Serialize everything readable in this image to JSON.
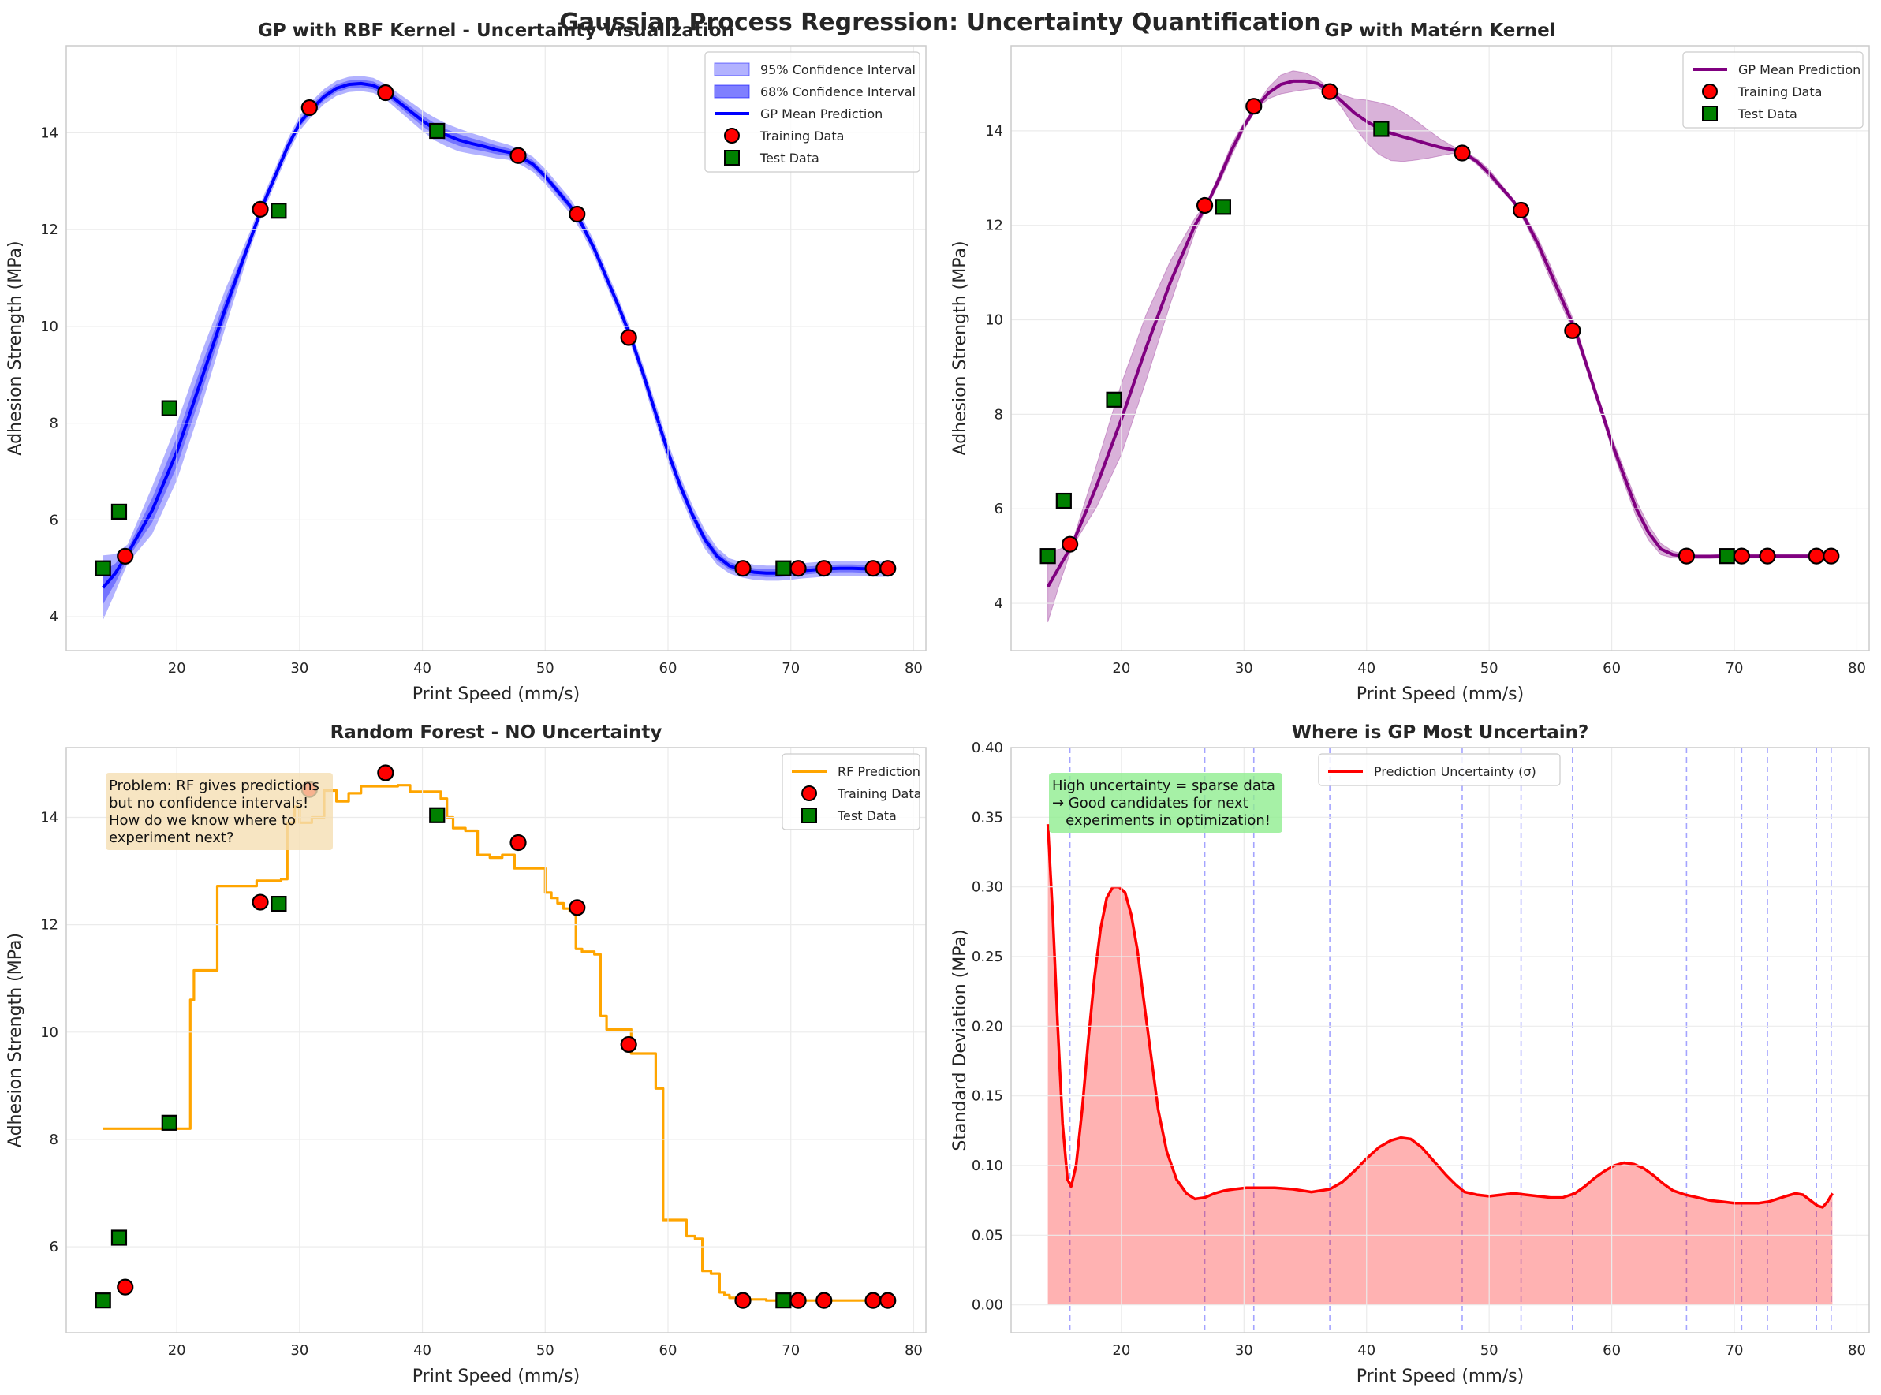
{
  "suptitle": "Gaussian Process Regression: Uncertainty Quantification",
  "colors": {
    "rbf": "#0000ff",
    "matern": "#800080",
    "rf": "#ffa500",
    "uncert": "#ff0000",
    "train_face": "#ff0000",
    "test_face": "#008000"
  },
  "chart_data": [
    {
      "type": "line",
      "title": "GP with RBF Kernel - Uncertainty Visualization",
      "xlabel": "Print Speed (mm/s)",
      "ylabel": "Adhesion Strength (MPa)",
      "xlim": [
        11,
        81
      ],
      "ylim": [
        3.3,
        15.8
      ],
      "xticks": [
        "20",
        "30",
        "40",
        "50",
        "60",
        "70",
        "80"
      ],
      "yticks": [
        "4",
        "6",
        "8",
        "10",
        "12",
        "14"
      ],
      "grid": true,
      "legend_position": "top-right",
      "legend": [
        "95% Confidence Interval",
        "68% Confidence Interval",
        "GP Mean Prediction",
        "Training Data",
        "Test Data"
      ],
      "series": [
        {
          "name": "GP Mean Prediction",
          "kind": "line",
          "x": [
            14,
            15,
            16,
            18,
            20,
            22,
            24,
            26,
            27,
            28,
            29,
            30,
            31,
            32,
            33,
            34,
            35,
            36,
            37,
            38,
            39,
            40,
            41,
            42,
            43,
            44,
            45,
            46,
            47,
            48,
            49,
            50,
            51,
            52,
            53,
            54,
            55,
            56,
            57,
            58,
            59,
            60,
            61,
            62,
            63,
            64,
            65,
            66,
            67,
            68,
            69,
            70,
            71,
            72,
            73,
            74,
            75,
            76,
            77,
            78
          ],
          "y": [
            4.6,
            4.9,
            5.3,
            6.2,
            7.4,
            8.9,
            10.4,
            11.8,
            12.5,
            13.1,
            13.7,
            14.2,
            14.5,
            14.75,
            14.92,
            15.0,
            15.02,
            14.98,
            14.85,
            14.65,
            14.45,
            14.25,
            14.08,
            13.95,
            13.85,
            13.78,
            13.72,
            13.65,
            13.6,
            13.5,
            13.35,
            13.1,
            12.8,
            12.5,
            12.1,
            11.6,
            11.0,
            10.4,
            9.75,
            9.0,
            8.2,
            7.4,
            6.7,
            6.1,
            5.6,
            5.25,
            5.05,
            4.97,
            4.92,
            4.9,
            4.9,
            4.92,
            4.95,
            4.97,
            4.99,
            5.0,
            5.0,
            4.99,
            4.98,
            4.98
          ]
        },
        {
          "name": "68% Confidence Interval",
          "kind": "band",
          "sd": [
            0.34,
            0.2,
            0.1,
            0.25,
            0.3,
            0.28,
            0.2,
            0.09,
            0.08,
            0.08,
            0.08,
            0.08,
            0.08,
            0.08,
            0.08,
            0.08,
            0.08,
            0.08,
            0.08,
            0.09,
            0.1,
            0.11,
            0.12,
            0.12,
            0.12,
            0.11,
            0.1,
            0.09,
            0.08,
            0.08,
            0.08,
            0.08,
            0.08,
            0.08,
            0.08,
            0.08,
            0.08,
            0.08,
            0.08,
            0.09,
            0.1,
            0.1,
            0.1,
            0.1,
            0.1,
            0.09,
            0.08,
            0.08,
            0.08,
            0.08,
            0.08,
            0.08,
            0.08,
            0.08,
            0.08,
            0.08,
            0.08,
            0.08,
            0.08,
            0.08
          ]
        },
        {
          "name": "Training Data",
          "kind": "markers",
          "marker": "circle",
          "x": [
            15.8,
            26.8,
            30.8,
            37.0,
            47.8,
            52.6,
            56.8,
            66.1,
            70.6,
            72.7,
            76.7,
            77.9
          ],
          "y": [
            5.25,
            12.42,
            14.52,
            14.83,
            13.53,
            12.32,
            9.77,
            5.0,
            5.0,
            5.0,
            5.0,
            5.0
          ]
        },
        {
          "name": "Test Data",
          "kind": "markers",
          "marker": "square",
          "x": [
            14.0,
            15.3,
            19.4,
            28.3,
            41.2,
            69.4
          ],
          "y": [
            5.0,
            6.17,
            8.31,
            12.39,
            14.04,
            5.0
          ]
        }
      ]
    },
    {
      "type": "line",
      "title": "GP with Matérn Kernel",
      "xlabel": "Print Speed (mm/s)",
      "ylabel": "Adhesion Strength (MPa)",
      "xlim": [
        11,
        81
      ],
      "ylim": [
        3.0,
        15.8
      ],
      "xticks": [
        "20",
        "30",
        "40",
        "50",
        "60",
        "70",
        "80"
      ],
      "yticks": [
        "4",
        "6",
        "8",
        "10",
        "12",
        "14"
      ],
      "grid": true,
      "legend_position": "top-right",
      "legend": [
        "GP Mean Prediction",
        "Training Data",
        "Test Data"
      ],
      "series": [
        {
          "name": "GP Mean Prediction",
          "kind": "line",
          "x": [
            14,
            15,
            16,
            18,
            20,
            22,
            24,
            26,
            27,
            28,
            29,
            30,
            31,
            32,
            33,
            34,
            35,
            36,
            37,
            38,
            39,
            40,
            41,
            42,
            43,
            44,
            45,
            46,
            47,
            48,
            49,
            50,
            51,
            52,
            53,
            54,
            55,
            56,
            57,
            58,
            59,
            60,
            61,
            62,
            63,
            64,
            65,
            66,
            67,
            68,
            69,
            70,
            71,
            72,
            73,
            74,
            75,
            76,
            77,
            78
          ],
          "y": [
            4.35,
            4.8,
            5.25,
            6.5,
            7.9,
            9.4,
            10.8,
            12.0,
            12.45,
            13.0,
            13.6,
            14.1,
            14.5,
            14.8,
            14.98,
            15.05,
            15.05,
            15.0,
            14.85,
            14.62,
            14.38,
            14.2,
            14.05,
            13.95,
            13.87,
            13.8,
            13.72,
            13.65,
            13.6,
            13.52,
            13.35,
            13.1,
            12.8,
            12.5,
            12.1,
            11.6,
            11.0,
            10.4,
            9.8,
            9.0,
            8.2,
            7.4,
            6.7,
            6.0,
            5.5,
            5.15,
            5.03,
            5.0,
            4.99,
            4.99,
            5.0,
            5.0,
            5.0,
            5.0,
            5.0,
            5.0,
            5.0,
            5.0,
            5.0,
            5.0
          ]
        },
        {
          "name": "Confidence Band",
          "kind": "band",
          "sd": [
            0.75,
            0.35,
            0.05,
            0.45,
            0.75,
            0.7,
            0.45,
            0.15,
            0.05,
            0.1,
            0.12,
            0.08,
            0.04,
            0.12,
            0.2,
            0.22,
            0.18,
            0.1,
            0.04,
            0.14,
            0.3,
            0.45,
            0.55,
            0.58,
            0.52,
            0.42,
            0.3,
            0.18,
            0.08,
            0.04,
            0.06,
            0.08,
            0.06,
            0.04,
            0.08,
            0.12,
            0.15,
            0.15,
            0.12,
            0.1,
            0.1,
            0.12,
            0.15,
            0.17,
            0.16,
            0.12,
            0.07,
            0.04,
            0.04,
            0.04,
            0.04,
            0.04,
            0.04,
            0.04,
            0.04,
            0.04,
            0.04,
            0.04,
            0.04,
            0.04
          ]
        },
        {
          "name": "Training Data",
          "kind": "markers",
          "marker": "circle",
          "x": [
            15.8,
            26.8,
            30.8,
            37.0,
            47.8,
            52.6,
            56.8,
            66.1,
            70.6,
            72.7,
            76.7,
            77.9
          ],
          "y": [
            5.25,
            12.42,
            14.52,
            14.83,
            13.53,
            12.32,
            9.77,
            5.0,
            5.0,
            5.0,
            5.0,
            5.0
          ]
        },
        {
          "name": "Test Data",
          "kind": "markers",
          "marker": "square",
          "x": [
            14.0,
            15.3,
            19.4,
            28.3,
            41.2,
            69.4
          ],
          "y": [
            5.0,
            6.17,
            8.31,
            12.39,
            14.04,
            5.0
          ]
        }
      ]
    },
    {
      "type": "line",
      "title": "Random Forest - NO Uncertainty",
      "xlabel": "Print Speed (mm/s)",
      "ylabel": "Adhesion Strength (MPa)",
      "xlim": [
        11,
        81
      ],
      "ylim": [
        4.4,
        15.3
      ],
      "xticks": [
        "20",
        "30",
        "40",
        "50",
        "60",
        "70",
        "80"
      ],
      "yticks": [
        "6",
        "8",
        "10",
        "12",
        "14"
      ],
      "grid": true,
      "legend_position": "top-right",
      "legend": [
        "RF Prediction",
        "Training Data",
        "Test Data"
      ],
      "annotation": "Problem: RF gives predictions\nbut no confidence intervals!\nHow do we know where to\nexperiment next?",
      "series": [
        {
          "name": "RF Prediction",
          "kind": "step",
          "x": [
            14.0,
            21.1,
            21.1,
            21.4,
            21.4,
            23.3,
            23.3,
            26.5,
            26.5,
            28.5,
            28.5,
            29.0,
            29.0,
            29.6,
            29.6,
            30.0,
            30.0,
            31.0,
            31.0,
            32.0,
            32.0,
            33.0,
            33.0,
            34.0,
            34.0,
            35.0,
            35.0,
            38.0,
            38.0,
            39.0,
            39.0,
            41.5,
            41.5,
            42.0,
            42.0,
            42.5,
            42.5,
            43.5,
            43.5,
            44.5,
            44.5,
            45.5,
            45.5,
            46.5,
            46.5,
            47.5,
            47.5,
            50.0,
            50.0,
            50.5,
            50.5,
            51.0,
            51.0,
            51.5,
            51.5,
            52.0,
            52.0,
            52.5,
            52.5,
            53.0,
            53.0,
            54.0,
            54.0,
            54.5,
            54.5,
            55.0,
            55.0,
            57.0,
            57.0,
            59.0,
            59.0,
            59.6,
            59.6,
            61.5,
            61.5,
            62.2,
            62.2,
            62.8,
            62.8,
            63.5,
            63.5,
            64.2,
            64.2,
            64.6,
            64.6,
            65.0,
            65.0,
            65.8,
            65.8,
            68.0,
            68.0,
            74.0,
            74.0,
            78.0
          ],
          "y": [
            8.2,
            8.2,
            10.6,
            10.6,
            11.15,
            11.15,
            12.72,
            12.72,
            12.82,
            12.82,
            12.85,
            12.85,
            13.9,
            13.9,
            14.2,
            14.2,
            13.9,
            13.9,
            14.0,
            14.0,
            14.5,
            14.5,
            14.3,
            14.3,
            14.45,
            14.45,
            14.58,
            14.58,
            14.6,
            14.6,
            14.48,
            14.48,
            14.35,
            14.35,
            14.0,
            14.0,
            13.8,
            13.8,
            13.75,
            13.75,
            13.3,
            13.3,
            13.25,
            13.25,
            13.3,
            13.3,
            13.05,
            13.05,
            12.6,
            12.6,
            12.5,
            12.5,
            12.4,
            12.4,
            12.3,
            12.3,
            12.25,
            12.25,
            11.55,
            11.55,
            11.5,
            11.5,
            11.45,
            11.45,
            10.3,
            10.3,
            10.05,
            10.05,
            9.6,
            9.6,
            8.95,
            8.95,
            6.5,
            6.5,
            6.2,
            6.2,
            6.15,
            6.15,
            5.55,
            5.55,
            5.5,
            5.5,
            5.15,
            5.15,
            5.1,
            5.1,
            5.05,
            5.05,
            5.02,
            5.02,
            5.0,
            5.0,
            5.0,
            5.0
          ]
        },
        {
          "name": "Training Data",
          "kind": "markers",
          "marker": "circle",
          "x": [
            15.8,
            26.8,
            30.8,
            37.0,
            47.8,
            52.6,
            56.8,
            66.1,
            70.6,
            72.7,
            76.7,
            77.9
          ],
          "y": [
            5.25,
            12.42,
            14.52,
            14.83,
            13.53,
            12.32,
            9.77,
            5.0,
            5.0,
            5.0,
            5.0,
            5.0
          ]
        },
        {
          "name": "Test Data",
          "kind": "markers",
          "marker": "square",
          "x": [
            14.0,
            15.3,
            19.4,
            28.3,
            41.2,
            69.4
          ],
          "y": [
            5.0,
            6.17,
            8.31,
            12.39,
            14.04,
            5.0
          ]
        }
      ]
    },
    {
      "type": "area",
      "title": "Where is GP Most Uncertain?",
      "xlabel": "Print Speed (mm/s)",
      "ylabel": "Standard Deviation (MPa)",
      "xlim": [
        11,
        81
      ],
      "ylim": [
        -0.02,
        0.4
      ],
      "xticks": [
        "20",
        "30",
        "40",
        "50",
        "60",
        "70",
        "80"
      ],
      "yticks": [
        "0.00",
        "0.05",
        "0.10",
        "0.15",
        "0.20",
        "0.25",
        "0.30",
        "0.35",
        "0.40"
      ],
      "grid": true,
      "legend_position": "top-center",
      "legend": [
        "Prediction Uncertainty (σ)"
      ],
      "annotation": "High uncertainty = sparse data\n→ Good candidates for next\n   experiments in optimization!",
      "vlines": [
        15.8,
        26.8,
        30.8,
        37.0,
        47.8,
        52.6,
        56.8,
        66.1,
        70.6,
        72.7,
        76.7,
        77.9
      ],
      "series": [
        {
          "name": "Prediction Uncertainty (σ)",
          "kind": "area",
          "x": [
            14.0,
            14.4,
            14.8,
            15.2,
            15.6,
            15.9,
            16.3,
            16.8,
            17.3,
            17.8,
            18.3,
            18.8,
            19.3,
            19.8,
            20.3,
            20.8,
            21.3,
            21.8,
            22.4,
            23.0,
            23.7,
            24.5,
            25.3,
            26.0,
            26.8,
            27.6,
            28.4,
            29.2,
            30.2,
            31.2,
            32.5,
            34.0,
            35.5,
            37.0,
            38.0,
            39.0,
            40.0,
            41.0,
            42.0,
            42.8,
            43.6,
            44.5,
            45.5,
            46.5,
            47.3,
            48.0,
            49.0,
            50.0,
            51.0,
            52.0,
            53.0,
            54.0,
            55.0,
            56.0,
            57.0,
            57.8,
            58.6,
            59.4,
            60.2,
            61.0,
            61.8,
            62.6,
            63.4,
            64.2,
            65.0,
            66.0,
            67.0,
            68.0,
            69.0,
            70.0,
            71.0,
            72.0,
            72.8,
            73.5,
            74.2,
            75.0,
            75.6,
            76.2,
            76.8,
            77.2,
            77.6,
            78.0
          ],
          "y": [
            0.345,
            0.28,
            0.2,
            0.13,
            0.09,
            0.085,
            0.1,
            0.14,
            0.19,
            0.235,
            0.27,
            0.292,
            0.3,
            0.3,
            0.296,
            0.28,
            0.255,
            0.22,
            0.18,
            0.14,
            0.11,
            0.09,
            0.08,
            0.076,
            0.077,
            0.08,
            0.082,
            0.083,
            0.084,
            0.084,
            0.084,
            0.083,
            0.081,
            0.083,
            0.088,
            0.096,
            0.105,
            0.113,
            0.118,
            0.12,
            0.119,
            0.113,
            0.103,
            0.093,
            0.086,
            0.081,
            0.079,
            0.078,
            0.079,
            0.08,
            0.079,
            0.078,
            0.077,
            0.077,
            0.08,
            0.085,
            0.091,
            0.096,
            0.1,
            0.102,
            0.101,
            0.098,
            0.093,
            0.087,
            0.082,
            0.079,
            0.077,
            0.075,
            0.074,
            0.073,
            0.073,
            0.073,
            0.074,
            0.076,
            0.078,
            0.08,
            0.079,
            0.075,
            0.071,
            0.07,
            0.074,
            0.08
          ]
        }
      ]
    }
  ]
}
